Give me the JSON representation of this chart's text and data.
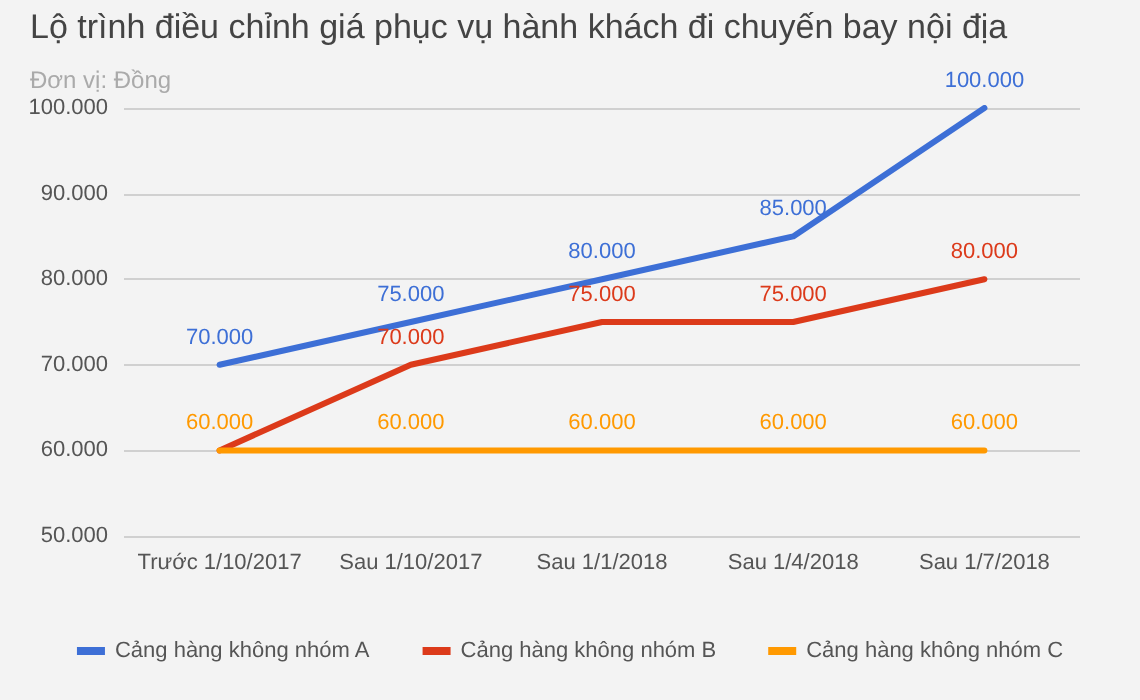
{
  "chart_data": {
    "type": "line",
    "title": "Lộ trình điều chỉnh giá phục vụ hành khách đi chuyến bay nội địa",
    "subtitle": "Đơn vị: Đồng",
    "categories": [
      "Trước 1/10/2017",
      "Sau 1/10/2017",
      "Sau 1/1/2018",
      "Sau 1/4/2018",
      "Sau 1/7/2018"
    ],
    "series": [
      {
        "name": "Cảng hàng không nhóm A",
        "color": "#3d6fd6",
        "values": [
          70000,
          75000,
          80000,
          85000,
          100000
        ],
        "value_labels": [
          "70.000",
          "75.000",
          "80.000",
          "85.000",
          "100.000"
        ]
      },
      {
        "name": "Cảng hàng không nhóm B",
        "color": "#dc3a1a",
        "values": [
          60000,
          70000,
          75000,
          75000,
          80000
        ],
        "value_labels": [
          null,
          "70.000",
          "75.000",
          "75.000",
          "80.000"
        ]
      },
      {
        "name": "Cảng hàng không nhóm C",
        "color": "#ff9900",
        "values": [
          60000,
          60000,
          60000,
          60000,
          60000
        ],
        "value_labels": [
          "60.000",
          "60.000",
          "60.000",
          "60.000",
          "60.000"
        ]
      }
    ],
    "ylim": [
      50000,
      100000
    ],
    "yticks": [
      {
        "value": 50000,
        "label": "50.000"
      },
      {
        "value": 60000,
        "label": "60.000"
      },
      {
        "value": 70000,
        "label": "70.000"
      },
      {
        "value": 80000,
        "label": "80.000"
      },
      {
        "value": 90000,
        "label": "90.000"
      },
      {
        "value": 100000,
        "label": "100.000"
      }
    ],
    "grid": "y",
    "legend": "bottom",
    "marker": "none",
    "line_style": "solid"
  }
}
